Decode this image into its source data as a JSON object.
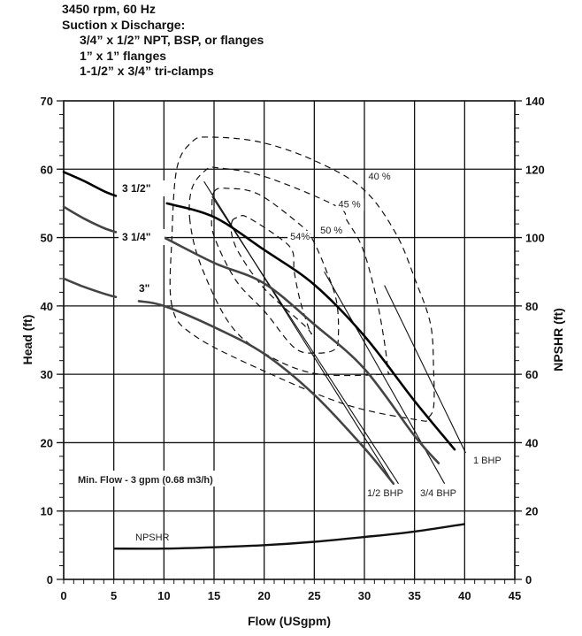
{
  "header": {
    "line1": "3450 rpm, 60 Hz",
    "line2": "Suction x Discharge:",
    "line3": "3/4” x 1/2” NPT, BSP, or flanges",
    "line4": "1” x 1” flanges",
    "line5": "1-1/2” x 3/4” tri-clamps"
  },
  "chart_data": {
    "type": "line",
    "xlabel": "Flow (USgpm)",
    "ylabel": "Head (ft)",
    "y2label": "NPSHR (ft)",
    "xlim": [
      0,
      45
    ],
    "ylim": [
      0,
      70
    ],
    "y2lim": [
      0,
      140
    ],
    "xticks": [
      "0",
      "5",
      "10",
      "15",
      "20",
      "25",
      "30",
      "35",
      "40",
      "45"
    ],
    "yticks": [
      "0",
      "10",
      "20",
      "30",
      "40",
      "50",
      "60",
      "70"
    ],
    "y2ticks": [
      "0",
      "20",
      "40",
      "60",
      "80",
      "100",
      "120",
      "140"
    ],
    "grid": true,
    "head_curves": [
      {
        "name": "3 1/2\"",
        "color": "#000000",
        "segments": [
          [
            [
              0,
              59.6
            ],
            [
              2,
              58.3
            ],
            [
              4,
              56.8
            ],
            [
              5.2,
              56.1
            ]
          ],
          [
            [
              10.3,
              55
            ],
            [
              15,
              53
            ],
            [
              20,
              48.2
            ],
            [
              25,
              43.1
            ],
            [
              30,
              35.6
            ],
            [
              35,
              26.1
            ],
            [
              39,
              19
            ]
          ]
        ]
      },
      {
        "name": "3 1/4\"",
        "color": "#444444",
        "segments": [
          [
            [
              0,
              54.5
            ],
            [
              2,
              52.8
            ],
            [
              4,
              51.4
            ],
            [
              5.2,
              50.8
            ]
          ],
          [
            [
              9.2,
              50.3
            ],
            [
              10,
              50
            ],
            [
              15,
              46.3
            ],
            [
              20,
              43.3
            ],
            [
              25,
              37.3
            ],
            [
              30,
              30.8
            ],
            [
              35,
              21
            ],
            [
              37.4,
              17
            ]
          ]
        ]
      },
      {
        "name": "3\"",
        "color": "#444444",
        "segments": [
          [
            [
              0,
              44
            ],
            [
              2,
              42.8
            ],
            [
              4,
              41.8
            ],
            [
              5.2,
              41.3
            ]
          ],
          [
            [
              7.5,
              40.7
            ],
            [
              10,
              40
            ],
            [
              15,
              36.9
            ],
            [
              20,
              33
            ],
            [
              25,
              27
            ],
            [
              30,
              19.2
            ],
            [
              32.9,
              14
            ]
          ]
        ]
      }
    ],
    "efficiency_contours": [
      {
        "name": "40 %",
        "points": [
          [
            10.8,
            40
          ],
          [
            10.8,
            50.2
          ],
          [
            11.3,
            60.2
          ],
          [
            12.8,
            64
          ],
          [
            14.5,
            64.7
          ],
          [
            19.5,
            64
          ],
          [
            24.8,
            61.4
          ],
          [
            29.8,
            57.2
          ],
          [
            33.1,
            50.7
          ],
          [
            35.1,
            43.7
          ],
          [
            36.6,
            37.3
          ],
          [
            36.9,
            30.8
          ],
          [
            36.9,
            25.2
          ],
          [
            36.2,
            23.5
          ],
          [
            35.4,
            23.3
          ],
          [
            28.3,
            25.5
          ],
          [
            20.1,
            30.4
          ],
          [
            13.1,
            35.6
          ]
        ]
      },
      {
        "name": "45 %",
        "points": [
          [
            12.6,
            52.4
          ],
          [
            12.8,
            57.2
          ],
          [
            14.2,
            59.9
          ],
          [
            15.4,
            60.2
          ],
          [
            20.1,
            58.9
          ],
          [
            27.2,
            54.6
          ],
          [
            28.3,
            52.4
          ],
          [
            29.8,
            48.5
          ],
          [
            31,
            42.4
          ],
          [
            31.8,
            36.5
          ],
          [
            32.3,
            30.8
          ],
          [
            31.8,
            30
          ],
          [
            25.1,
            30.1
          ],
          [
            20.1,
            33
          ],
          [
            16.6,
            37.3
          ],
          [
            13.7,
            45.9
          ]
        ]
      },
      {
        "name": "50 %",
        "points": [
          [
            15,
            56.7
          ],
          [
            16.3,
            57.2
          ],
          [
            19.5,
            56.3
          ],
          [
            23.9,
            51.5
          ],
          [
            24.8,
            49.8
          ],
          [
            26,
            45.9
          ],
          [
            27.2,
            40.8
          ],
          [
            27.4,
            35.6
          ],
          [
            27,
            33.6
          ],
          [
            25.1,
            33.1
          ],
          [
            23,
            33.9
          ],
          [
            20.1,
            39.1
          ],
          [
            17.2,
            43.7
          ],
          [
            15,
            50.2
          ],
          [
            14.8,
            53.7
          ]
        ]
      },
      {
        "name": "54%",
        "points": [
          [
            16.8,
            52.4
          ],
          [
            17.5,
            53
          ],
          [
            18.3,
            53
          ],
          [
            21.3,
            50.2
          ],
          [
            22.8,
            48.1
          ],
          [
            23,
            45
          ],
          [
            23.6,
            40.7
          ],
          [
            24.5,
            36.5
          ],
          [
            24.7,
            36
          ],
          [
            23.9,
            37.3
          ],
          [
            20.1,
            42.4
          ],
          [
            17.7,
            47.2
          ],
          [
            16.8,
            50.2
          ]
        ]
      }
    ],
    "power_lines": [
      {
        "name": "1/2 BHP",
        "lines": [
          [
            [
              14,
              58.2
            ],
            [
              32.9,
              14
            ]
          ],
          [
            [
              14.8,
              56
            ],
            [
              33.4,
              14
            ]
          ]
        ]
      },
      {
        "name": "3/4 BHP",
        "lines": [
          [
            [
              26,
              45
            ],
            [
              38,
              14
            ]
          ]
        ]
      },
      {
        "name": "1 BHP",
        "lines": [
          [
            [
              32,
              43
            ],
            [
              40.1,
              18.5
            ]
          ]
        ]
      }
    ],
    "npshr": {
      "name": "NPSHR",
      "x": [
        5,
        10,
        15,
        20,
        25,
        30,
        35,
        40
      ],
      "y2": [
        9,
        9,
        9.4,
        10,
        11,
        12.4,
        14,
        16.2
      ]
    },
    "annotation": "Min. Flow - 3 gpm (0.68 m3/h)"
  }
}
